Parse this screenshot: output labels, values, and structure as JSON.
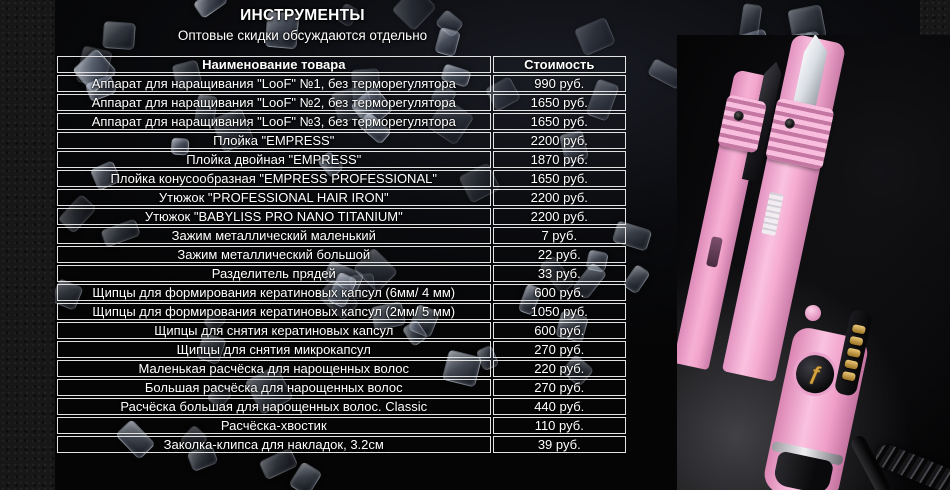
{
  "header": {
    "title": "ИНСТРУМЕНТЫ",
    "subtitle": "Оптовые скидки обсуждаются отдельно"
  },
  "table": {
    "columns": {
      "name": "Наименование товара",
      "price": "Стоимость"
    },
    "rows": [
      {
        "name": "Аппарат для наращивания \"LooF\" №1, без терморегулятора",
        "price": "990 руб."
      },
      {
        "name": "Аппарат для наращивания \"LooF\" №2, без терморегулятора",
        "price": "1650 руб."
      },
      {
        "name": "Аппарат для наращивания \"LooF\" №3, без терморегулятора",
        "price": "1650 руб."
      },
      {
        "name": "Плойка \"EMPRESS\"",
        "price": "2200 руб."
      },
      {
        "name": "Плойка двойная \"EMPRESS\"",
        "price": "1870 руб."
      },
      {
        "name": "Плойка конусообразная \"EMPRESS PROFESSIONAL\"",
        "price": "1650 руб."
      },
      {
        "name": "Утюжок \"PROFESSIONAL HAIR IRON\"",
        "price": "2200 руб."
      },
      {
        "name": "Утюжок \"BABYLISS PRO NANO TITANIUM\"",
        "price": "2200 руб."
      },
      {
        "name": "Зажим металлический маленький",
        "price": "7 руб."
      },
      {
        "name": "Зажим металлический большой",
        "price": "22 руб."
      },
      {
        "name": "Разделитель прядей",
        "price": "33 руб."
      },
      {
        "name": "Щипцы для формирования кератиновых капсул (6мм/ 4 мм)",
        "price": "600 руб."
      },
      {
        "name": "Щипцы для формирования кератиновых капсул (2мм/ 5 мм)",
        "price": "1050 руб."
      },
      {
        "name": "Щипцы для снятия кератиновых капсул",
        "price": "600 руб."
      },
      {
        "name": "Щипцы для снятия микрокапсул",
        "price": "270 руб."
      },
      {
        "name": "Маленькая расчёска для нарощенных волос",
        "price": "220 руб."
      },
      {
        "name": "Большая расчёска для нарощенных волос",
        "price": "270 руб."
      },
      {
        "name": "Расчёска большая для нарощенных волос. Classic",
        "price": "440 руб."
      },
      {
        "name": "Расчёска-хвостик",
        "price": "110 руб."
      },
      {
        "name": "Заколка-клипса для накладок,  3.2см",
        "price": "39 руб.",
        "spellcheck": true
      }
    ]
  },
  "photo": {
    "dial_mark": "ƒ"
  },
  "colors": {
    "text": "#ffffff",
    "table_border": "#e3e3e3",
    "iron_pink": "#f6b0d4",
    "button_amber": "#d9a93f",
    "spellcheck_green": "#3f9e3f",
    "granule_blue": "#a8b7d2"
  }
}
